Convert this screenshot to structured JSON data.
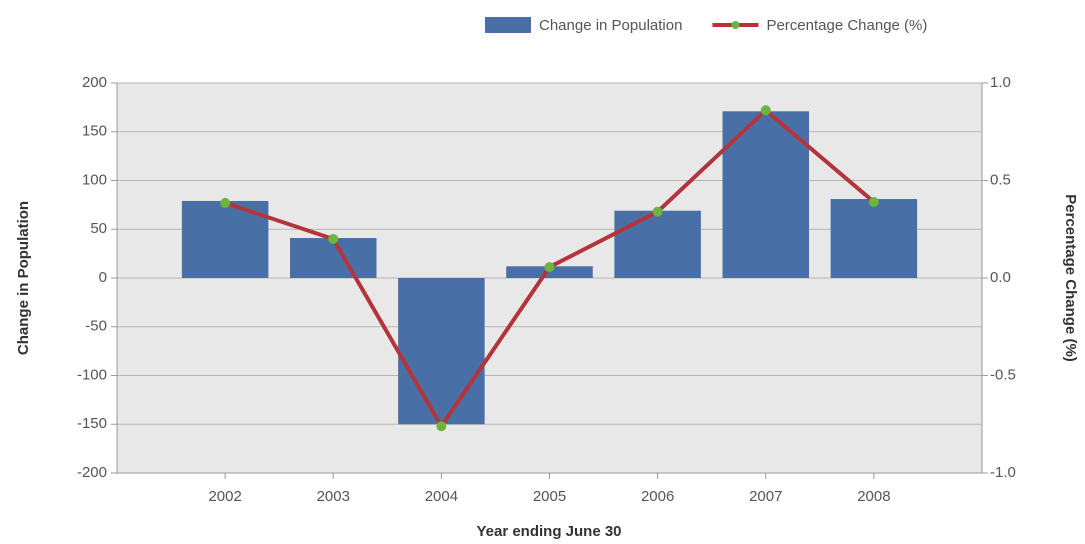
{
  "chart_data": {
    "type": "bar_line",
    "xlabel": "Year ending June 30",
    "ylabel": "Change in Population",
    "y2label": "Percentage Change (%)",
    "categories": [
      "2002",
      "2003",
      "2004",
      "2005",
      "2006",
      "2007",
      "2008"
    ],
    "series": [
      {
        "name": "Change in Population",
        "type": "bar",
        "color": "#4870a6",
        "values": [
          79,
          41,
          -150,
          12,
          69,
          171,
          81
        ]
      },
      {
        "name": "Percentage Change (%)",
        "type": "line",
        "axis": "y2",
        "color": "#b3343a",
        "marker_color": "#6db33f",
        "values": [
          0.385,
          0.2,
          -0.76,
          0.056,
          0.34,
          0.86,
          0.39
        ]
      }
    ],
    "ylim": [
      -200,
      200
    ],
    "yticks": [
      -200,
      -150,
      -100,
      -50,
      0,
      50,
      100,
      150,
      200
    ],
    "y2lim": [
      -1,
      1
    ],
    "y2ticks": [
      {
        "value": -1,
        "label": "-1.0"
      },
      -0.5,
      {
        "value": 0,
        "label": "0.0"
      },
      0.5,
      {
        "value": 1,
        "label": "1.0"
      }
    ],
    "grid": true,
    "legend": "top-right"
  }
}
